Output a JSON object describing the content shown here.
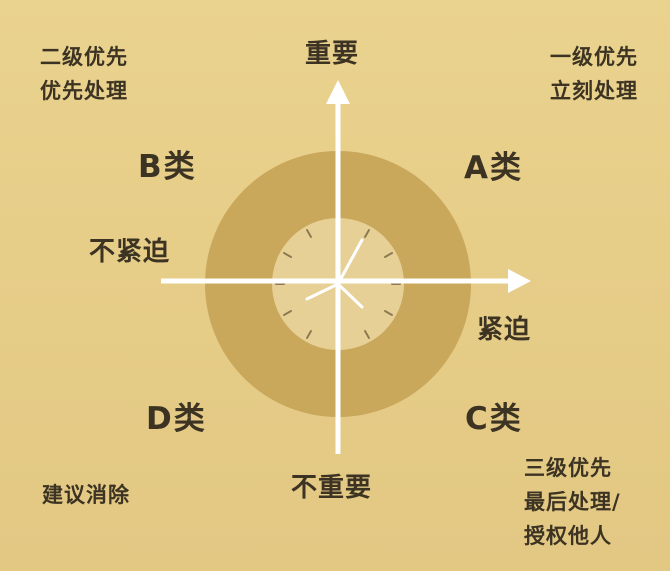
{
  "axes": {
    "top": "重要",
    "bottom": "不重要",
    "left": "不紧迫",
    "right": "紧迫"
  },
  "quadrants": {
    "a": {
      "label": "A类",
      "note_lines": [
        "一级优先",
        "立刻处理"
      ]
    },
    "b": {
      "label": "B类",
      "note_lines": [
        "二级优先",
        "优先处理"
      ]
    },
    "c": {
      "label": "C类",
      "note_lines": [
        "三级优先",
        "最后处理/",
        "授权他人"
      ]
    },
    "d": {
      "label": "D类",
      "note_lines": [
        "建议消除"
      ]
    }
  },
  "colors": {
    "background": "#e6cd88",
    "outer_ring": "#c9a75b",
    "inner_disc": "#e7d096",
    "axis": "#ffffff",
    "text": "#3c3323",
    "clock_marks": "#8d7a52"
  },
  "icons": {
    "center": "clock-icon"
  }
}
